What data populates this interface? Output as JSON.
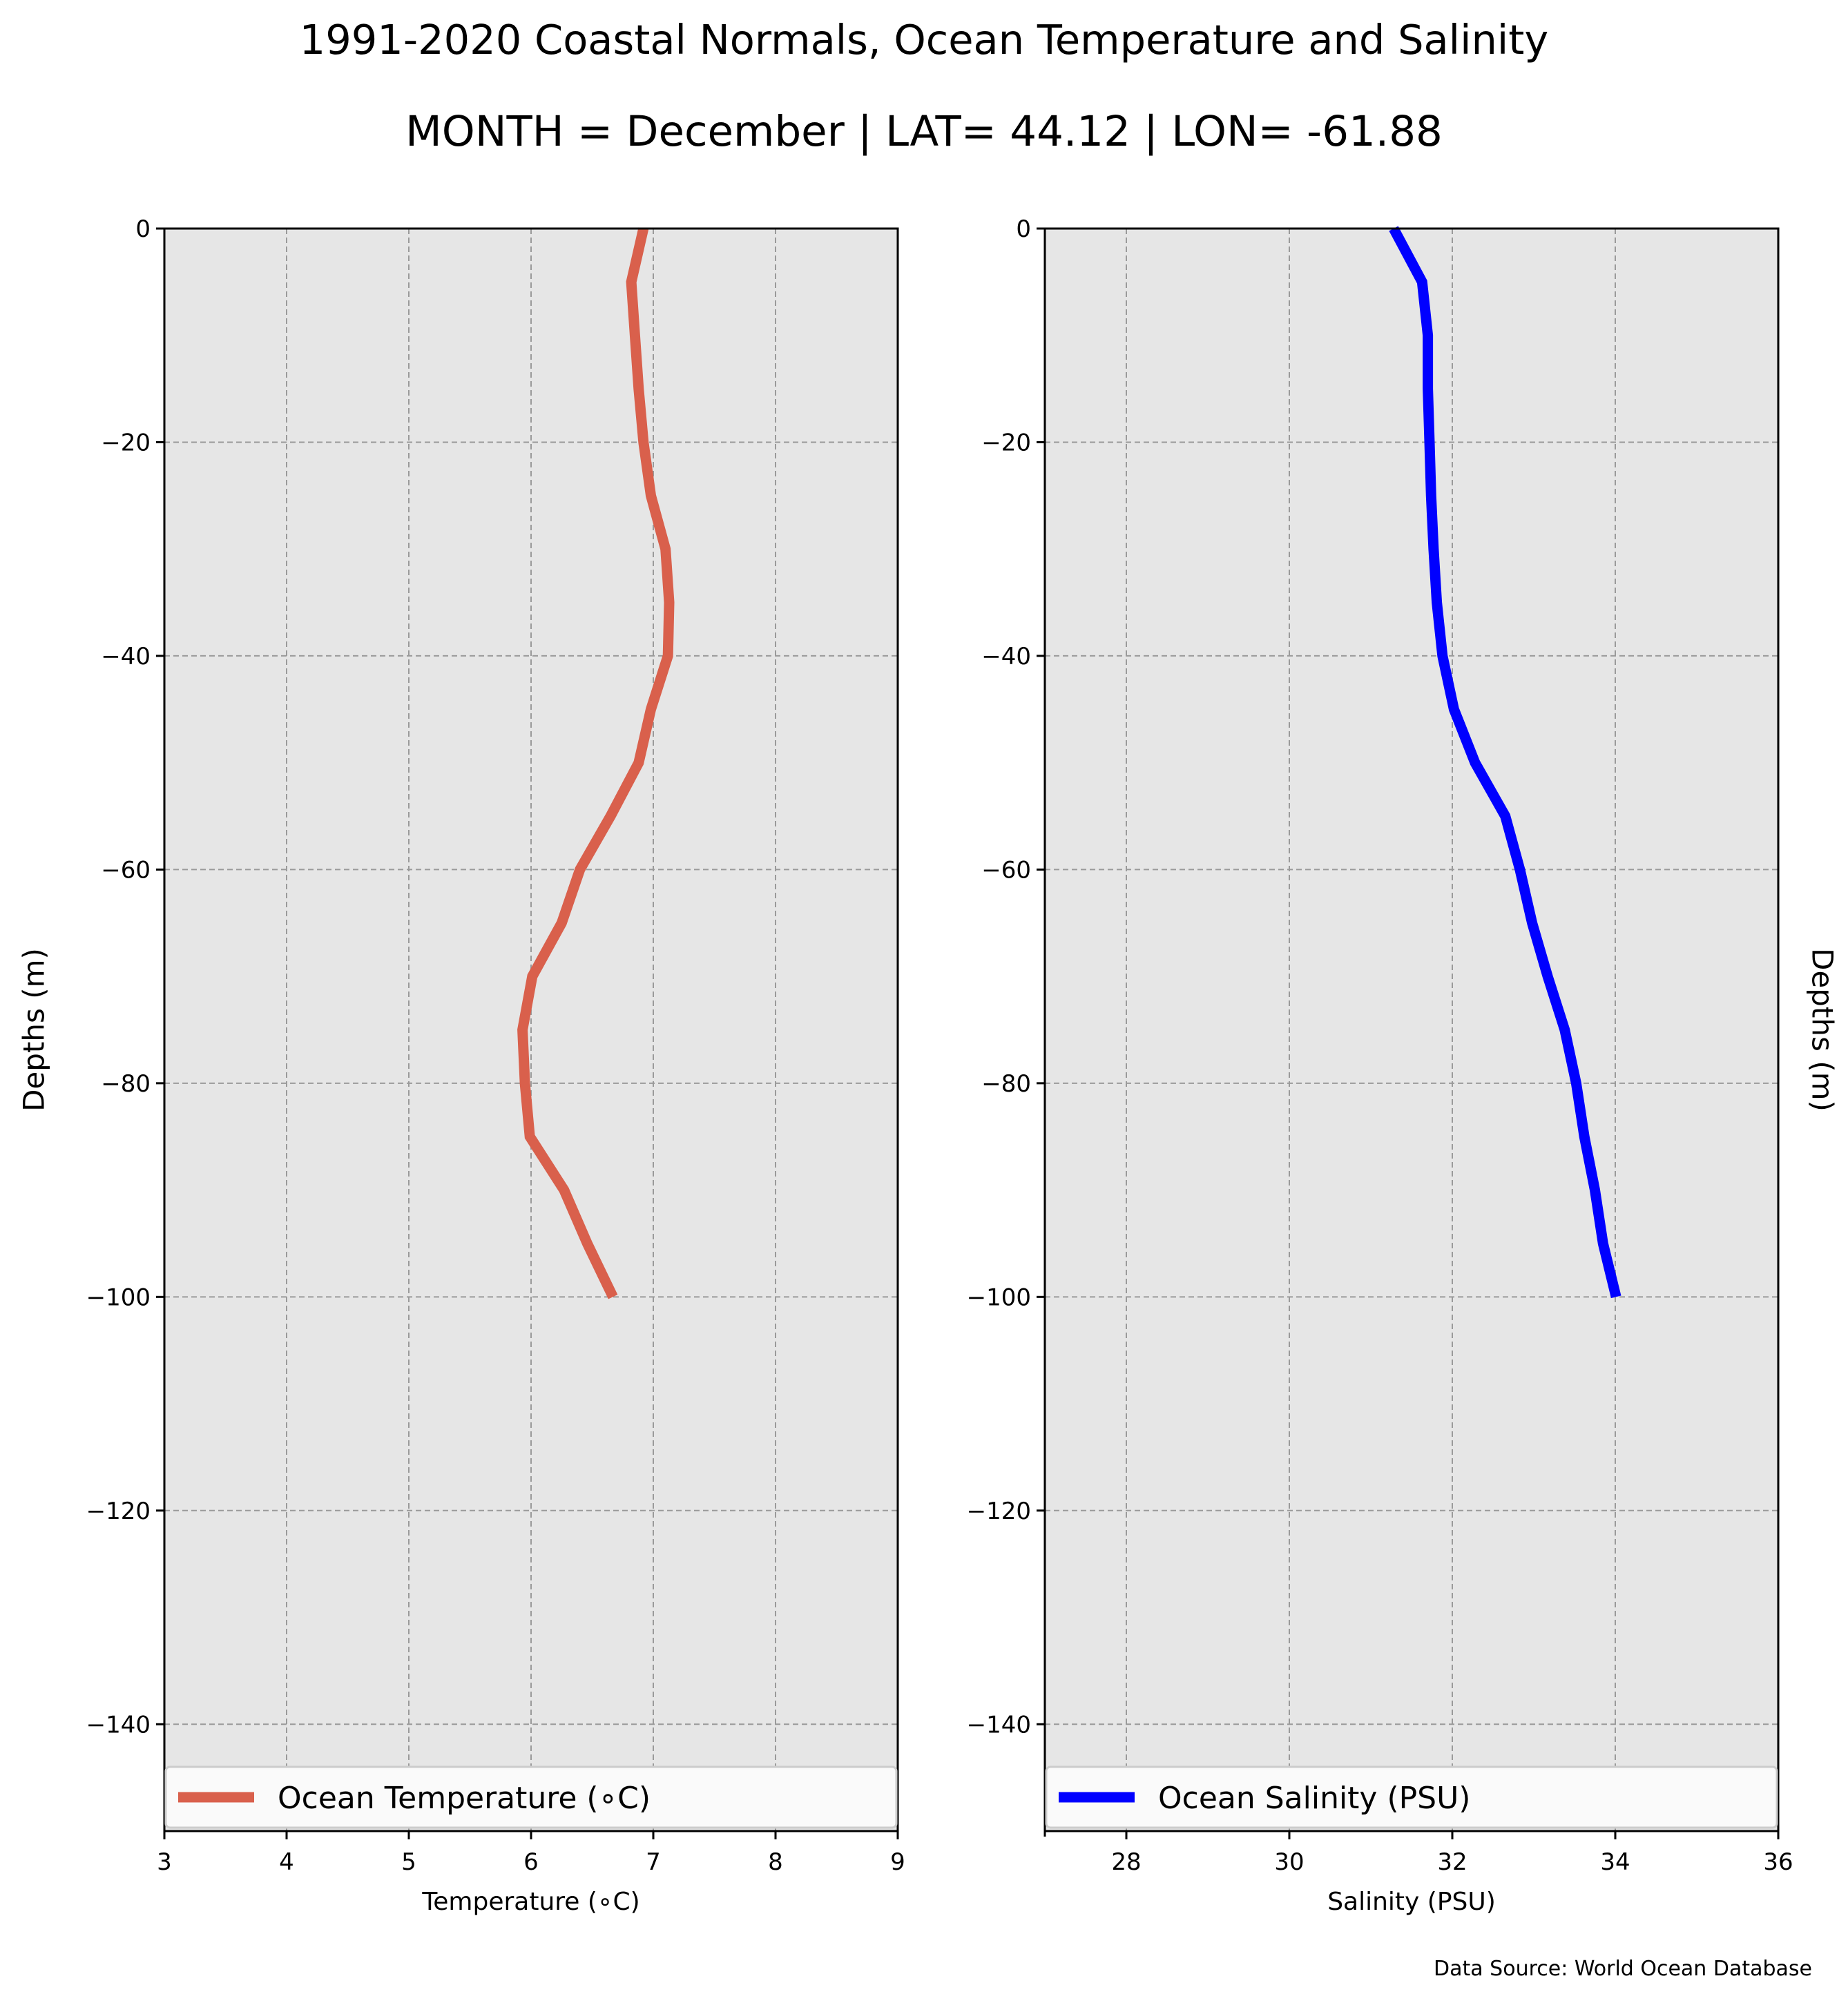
{
  "figure": {
    "title": "1991-2020 Coastal Normals, Ocean Temperature and Salinity",
    "subtitle": "MONTH = December | LAT= 44.12 | LON= -61.88",
    "source": "Data Source: World Ocean Database"
  },
  "chart_data": [
    {
      "type": "line",
      "xlabel": "Temperature (∘C)",
      "ylabel": "Depths (m)",
      "xlim": [
        3,
        9
      ],
      "ylim": [
        -150,
        0
      ],
      "xticks": [
        3,
        4,
        5,
        6,
        7,
        8,
        9
      ],
      "yticks": [
        0,
        -20,
        -40,
        -60,
        -80,
        -100,
        -120,
        -140
      ],
      "xtick_labels": [
        "3",
        "4",
        "5",
        "6",
        "7",
        "8",
        "9"
      ],
      "ytick_labels": [
        "0",
        "−20",
        "−40",
        "−60",
        "−80",
        "−100",
        "−120",
        "−140"
      ],
      "grid": true,
      "background": "#e6e6e6",
      "legend": "lower center",
      "series": [
        {
          "name": "Ocean Temperature (∘C)",
          "color": "#d9604c",
          "x": [
            6.92,
            6.82,
            6.85,
            6.88,
            6.92,
            6.98,
            7.1,
            7.13,
            7.12,
            6.98,
            6.88,
            6.65,
            6.4,
            6.25,
            6.01,
            5.93,
            5.95,
            5.99,
            6.27,
            6.46,
            6.67
          ],
          "y": [
            0,
            -5,
            -10,
            -15,
            -20,
            -25,
            -30,
            -35,
            -40,
            -45,
            -50,
            -55,
            -60,
            -65,
            -70,
            -75,
            -80,
            -85,
            -90,
            -95,
            -100
          ]
        }
      ]
    },
    {
      "type": "line",
      "xlabel": "Salinity (PSU)",
      "ylabel": "Depths (m)",
      "xlim": [
        27,
        36
      ],
      "ylim": [
        -150,
        0
      ],
      "xticks": [
        28,
        30,
        32,
        34,
        36
      ],
      "yticks": [
        0,
        -20,
        -40,
        -60,
        -80,
        -100,
        -120,
        -140
      ],
      "xtick_labels": [
        "28",
        "30",
        "32",
        "34",
        "36"
      ],
      "ytick_labels": [
        "0",
        "−20",
        "−40",
        "−60",
        "−80",
        "−100",
        "−120",
        "−140"
      ],
      "grid": true,
      "background": "#e6e6e6",
      "legend": "lower center",
      "series": [
        {
          "name": "Ocean Salinity (PSU)",
          "color": "#0000ff",
          "x": [
            31.28,
            31.63,
            31.7,
            31.7,
            31.72,
            31.74,
            31.77,
            31.81,
            31.88,
            32.02,
            32.28,
            32.65,
            32.83,
            32.98,
            33.17,
            33.38,
            33.52,
            33.62,
            33.75,
            33.85,
            34.01
          ],
          "y": [
            0,
            -5,
            -10,
            -15,
            -20,
            -25,
            -30,
            -35,
            -40,
            -45,
            -50,
            -55,
            -60,
            -65,
            -70,
            -75,
            -80,
            -85,
            -90,
            -95,
            -100
          ]
        }
      ]
    }
  ]
}
